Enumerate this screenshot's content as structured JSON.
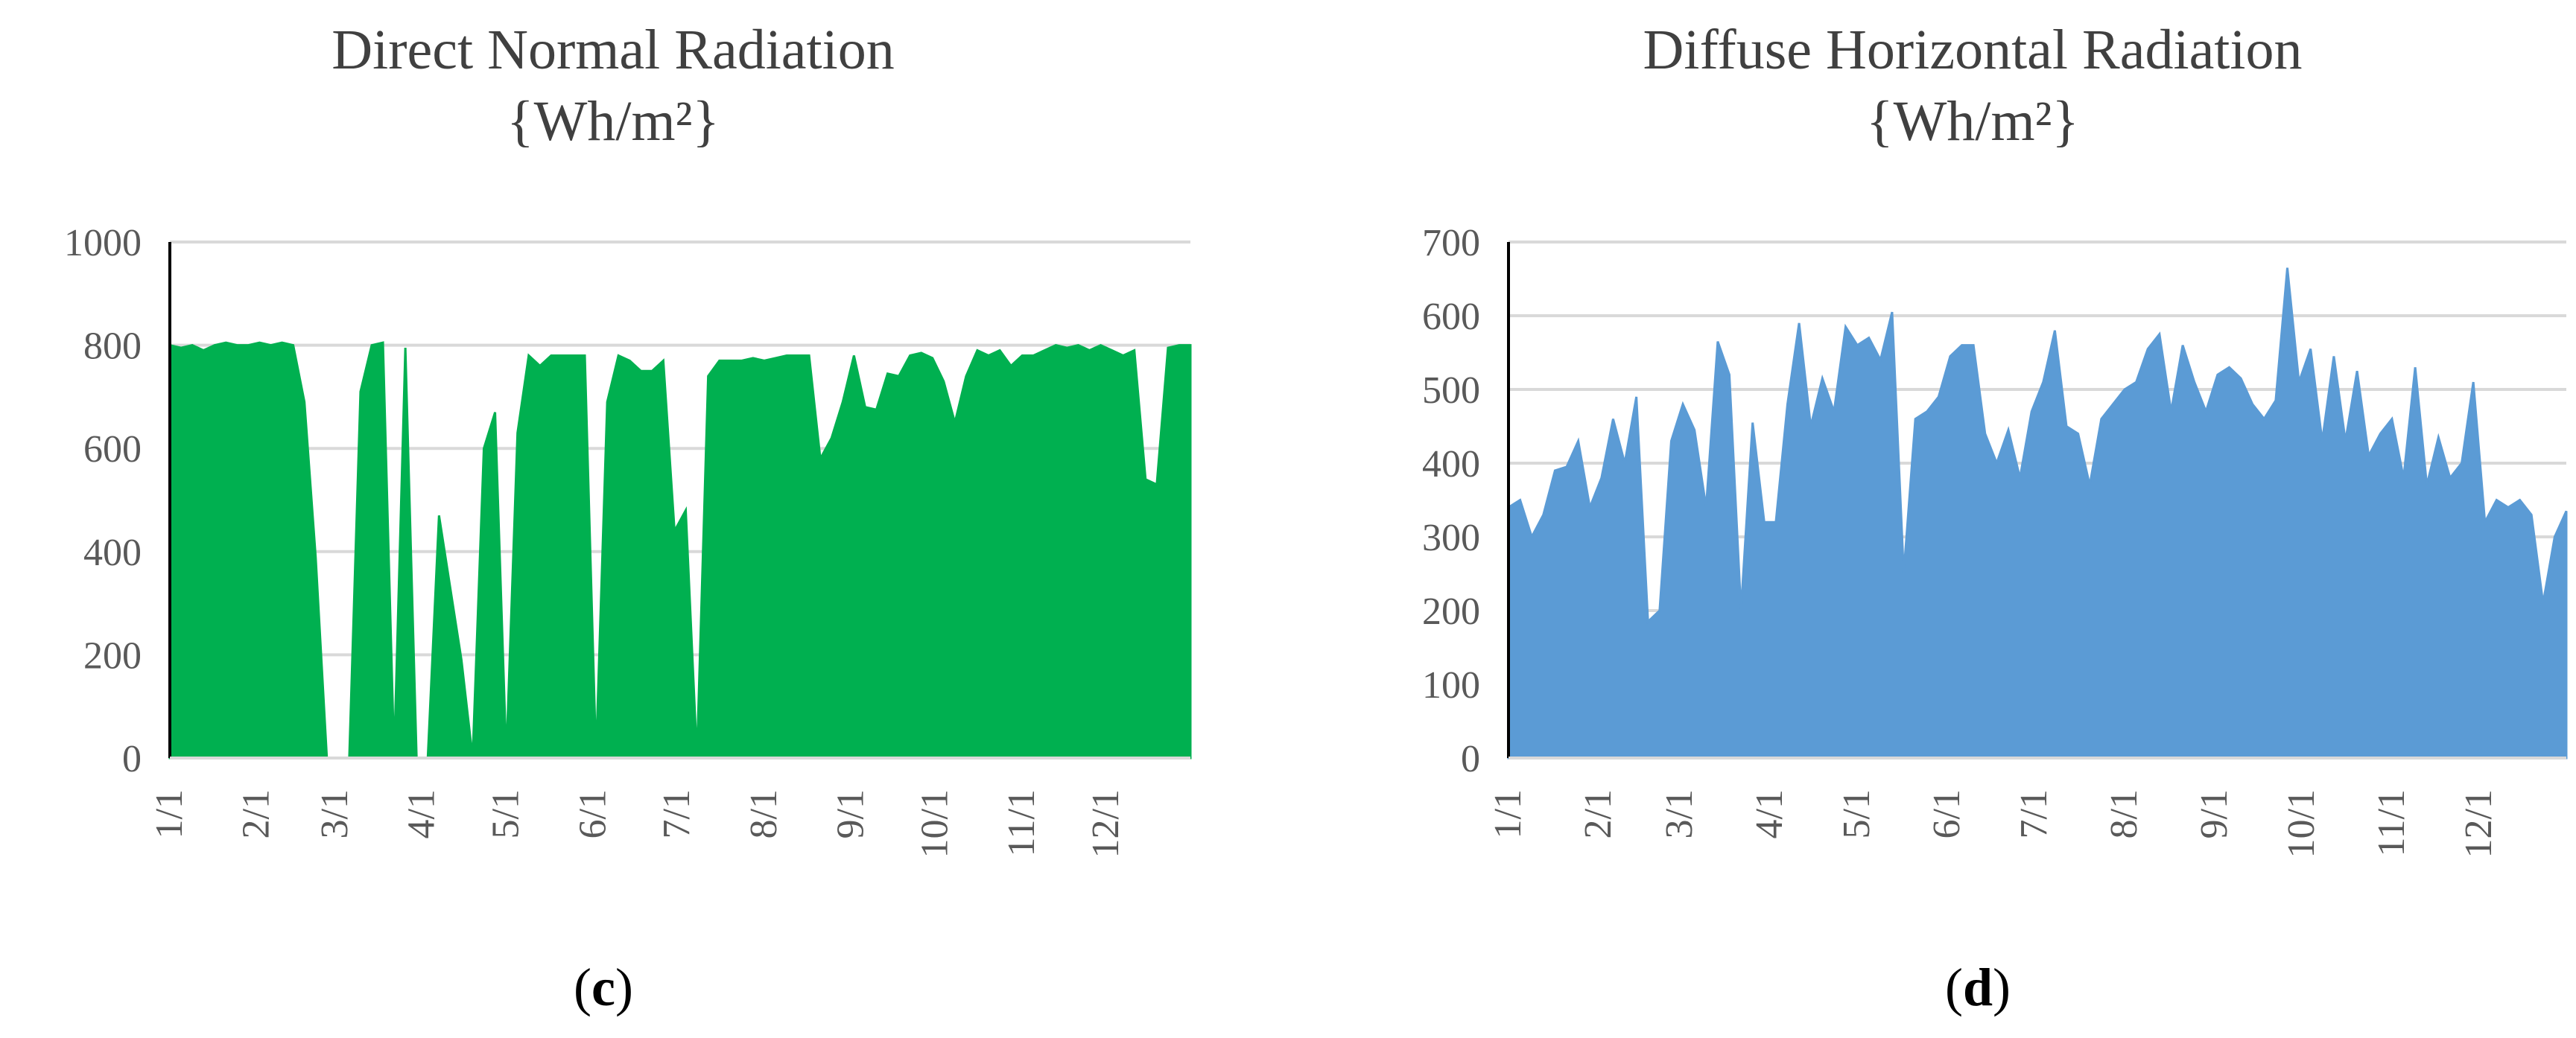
{
  "chart_data": [
    {
      "type": "area",
      "title": "Direct Normal Radiation",
      "units": "{Wh/m²}",
      "caption_letter": "c",
      "color": "#00b050",
      "ylim": [
        0,
        1000
      ],
      "yticks": [
        0,
        200,
        400,
        600,
        800,
        1000
      ],
      "xticks": [
        "1/1",
        "2/1",
        "3/1",
        "4/1",
        "5/1",
        "6/1",
        "7/1",
        "8/1",
        "9/1",
        "10/1",
        "11/1",
        "12/1"
      ],
      "grid": true,
      "x": [
        1,
        5,
        9,
        13,
        17,
        21,
        25,
        29,
        33,
        37,
        41,
        45,
        49,
        53,
        57,
        61,
        65,
        69,
        73,
        77,
        81,
        85,
        89,
        93,
        97,
        101,
        105,
        109,
        113,
        117,
        121,
        125,
        129,
        133,
        137,
        141,
        145,
        149,
        153,
        157,
        161,
        165,
        169,
        173,
        177,
        181,
        185,
        189,
        193,
        197,
        201,
        205,
        209,
        213,
        217,
        221,
        225,
        229,
        233,
        237,
        241,
        245,
        249,
        253,
        257,
        261,
        265,
        269,
        273,
        277,
        281,
        285,
        289,
        293,
        297,
        301,
        305,
        309,
        313,
        317,
        321,
        325,
        329,
        333,
        337,
        341,
        345,
        349,
        353,
        357,
        361,
        365
      ],
      "values": [
        800,
        795,
        800,
        790,
        800,
        805,
        800,
        800,
        805,
        800,
        805,
        800,
        690,
        390,
        0,
        0,
        0,
        710,
        800,
        805,
        0,
        795,
        0,
        0,
        470,
        330,
        190,
        0,
        600,
        670,
        0,
        630,
        780,
        760,
        780,
        780,
        780,
        780,
        0,
        690,
        780,
        770,
        750,
        750,
        770,
        440,
        480,
        0,
        740,
        770,
        770,
        770,
        775,
        770,
        775,
        780,
        780,
        780,
        580,
        620,
        690,
        780,
        680,
        675,
        745,
        740,
        780,
        785,
        775,
        730,
        650,
        740,
        790,
        780,
        790,
        760,
        780,
        780,
        790,
        800,
        795,
        800,
        790,
        800,
        790,
        780,
        790,
        540,
        530,
        795,
        800,
        800
      ]
    },
    {
      "type": "area",
      "title": "Diffuse Horizontal Radiation",
      "units": "{Wh/m²}",
      "caption_letter": "d",
      "color": "#5b9bd5",
      "ylim": [
        0,
        700
      ],
      "yticks": [
        0,
        100,
        200,
        300,
        400,
        500,
        600,
        700
      ],
      "xticks": [
        "1/1",
        "2/1",
        "3/1",
        "4/1",
        "5/1",
        "6/1",
        "7/1",
        "8/1",
        "9/1",
        "10/1",
        "11/1",
        "12/1"
      ],
      "grid": true,
      "x": [
        1,
        5,
        9,
        13,
        17,
        21,
        25,
        29,
        33,
        37,
        41,
        45,
        49,
        53,
        57,
        61,
        65,
        69,
        73,
        77,
        81,
        85,
        89,
        93,
        97,
        101,
        105,
        109,
        113,
        117,
        121,
        125,
        129,
        133,
        137,
        141,
        145,
        149,
        153,
        157,
        161,
        165,
        169,
        173,
        177,
        181,
        185,
        189,
        193,
        197,
        201,
        205,
        209,
        213,
        217,
        221,
        225,
        229,
        233,
        237,
        241,
        245,
        249,
        253,
        257,
        261,
        265,
        269,
        273,
        277,
        281,
        285,
        289,
        293,
        297,
        301,
        305,
        309,
        313,
        317,
        321,
        325,
        329,
        333,
        337,
        341,
        345,
        349,
        353,
        357,
        361,
        365
      ],
      "values": [
        340,
        350,
        300,
        330,
        390,
        395,
        430,
        340,
        380,
        460,
        400,
        490,
        185,
        200,
        430,
        480,
        445,
        340,
        565,
        520,
        200,
        455,
        320,
        320,
        480,
        590,
        450,
        515,
        470,
        585,
        560,
        570,
        540,
        605,
        250,
        460,
        470,
        490,
        545,
        560,
        560,
        440,
        400,
        445,
        380,
        470,
        510,
        580,
        450,
        440,
        370,
        460,
        480,
        500,
        510,
        555,
        575,
        470,
        560,
        510,
        470,
        520,
        530,
        515,
        480,
        460,
        485,
        665,
        510,
        555,
        430,
        545,
        430,
        525,
        410,
        440,
        460,
        380,
        530,
        370,
        435,
        380,
        400,
        510,
        320,
        350,
        340,
        350,
        330,
        210,
        300,
        335
      ]
    }
  ]
}
